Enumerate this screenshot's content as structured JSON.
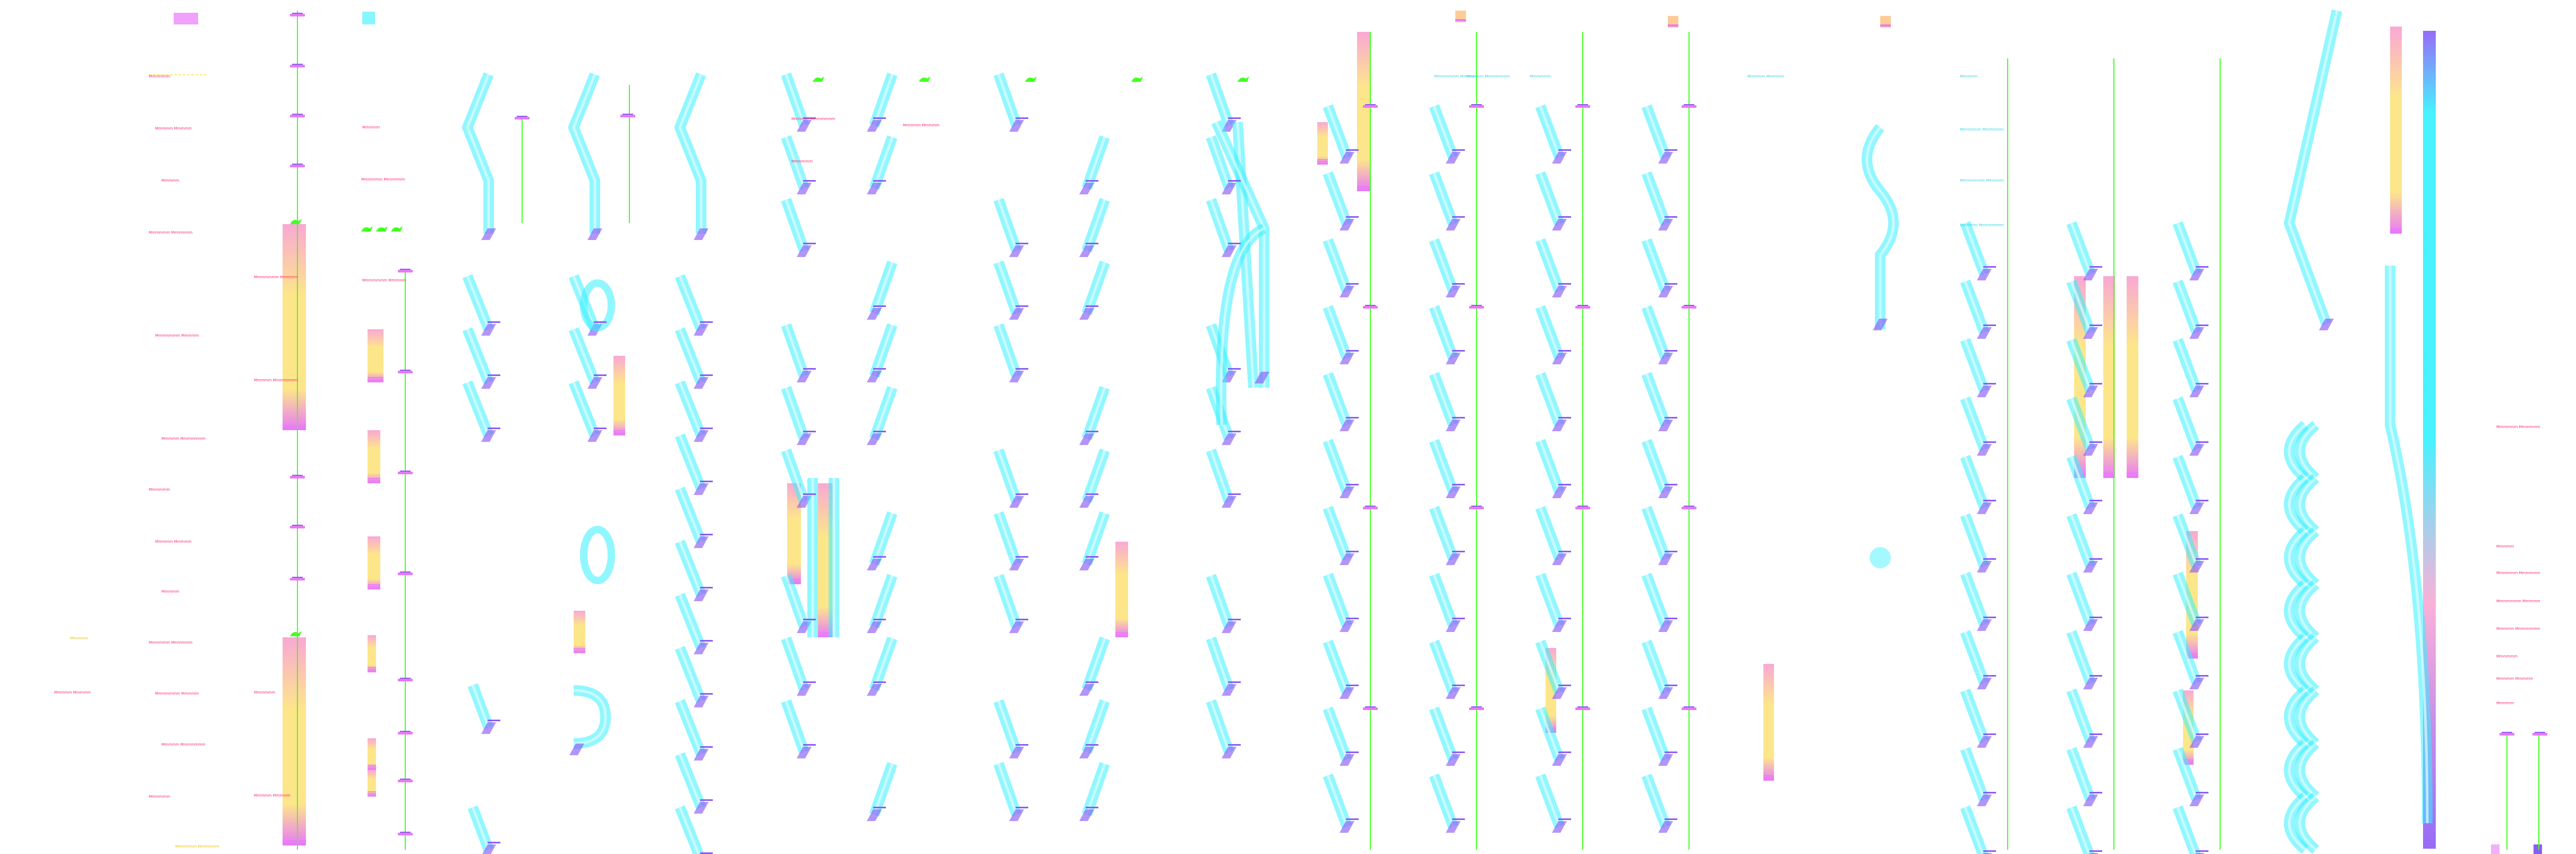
{
  "colors": {
    "cyan": "#35f0ff",
    "magenta": "#e879f9",
    "violet": "#8b5cf6",
    "green": "#44ff22",
    "peach": "#fde68a",
    "orange": "#fdba74",
    "pink": "#ff2b6e",
    "yellow": "#ffe14d",
    "pinkbar": "#f9a8d4"
  },
  "columns": [
    {
      "id": "col-01"
    },
    {
      "id": "col-02"
    },
    {
      "id": "col-03"
    },
    {
      "id": "col-04"
    },
    {
      "id": "col-05"
    },
    {
      "id": "col-06"
    },
    {
      "id": "col-07"
    },
    {
      "id": "col-08"
    },
    {
      "id": "col-09"
    },
    {
      "id": "col-10"
    },
    {
      "id": "col-11"
    },
    {
      "id": "col-12"
    },
    {
      "id": "col-13"
    },
    {
      "id": "col-14"
    },
    {
      "id": "col-15"
    },
    {
      "id": "col-16"
    },
    {
      "id": "col-17"
    },
    {
      "id": "col-18"
    },
    {
      "id": "col-19"
    },
    {
      "id": "col-20"
    },
    {
      "id": "col-21"
    },
    {
      "id": "col-22"
    },
    {
      "id": "col-23"
    },
    {
      "id": "col-24"
    }
  ],
  "labels": [
    "Mmmmmm",
    "Mmmmm Mmmmm",
    "Mmmmm",
    "Mmmmmm Mmmmmm",
    "Mmmmmmm Mmmmm",
    "Mmmmm Mmmmmmm"
  ]
}
